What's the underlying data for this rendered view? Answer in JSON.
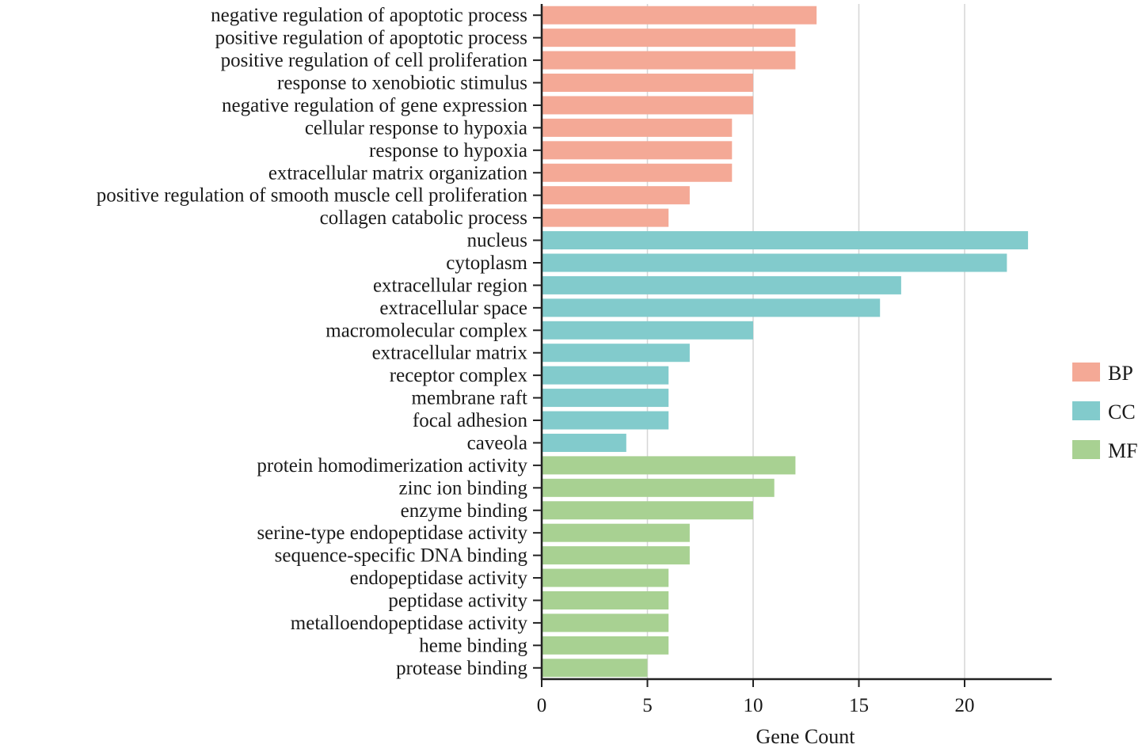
{
  "chart_data": {
    "type": "bar",
    "orientation": "horizontal",
    "xlabel": "Gene Count",
    "ylabel": "",
    "title": "",
    "xlim": [
      0,
      24
    ],
    "x_ticks": [
      0,
      5,
      10,
      15,
      20
    ],
    "grid": "vertical",
    "legend_position": "right",
    "categories": [
      "negative regulation of apoptotic process",
      "positive regulation of apoptotic process",
      "positive regulation of cell proliferation",
      "response to xenobiotic stimulus",
      "negative regulation of gene expression",
      "cellular response to hypoxia",
      "response to hypoxia",
      "extracellular matrix organization",
      "positive regulation of smooth muscle cell proliferation",
      "collagen catabolic process",
      "nucleus",
      "cytoplasm",
      "extracellular region",
      "extracellular space",
      "macromolecular complex",
      "extracellular matrix",
      "receptor complex",
      "membrane raft",
      "focal adhesion",
      "caveola",
      "protein homodimerization activity",
      "zinc ion binding",
      "enzyme binding",
      "serine-type endopeptidase activity",
      "sequence-specific DNA binding",
      "endopeptidase activity",
      "peptidase activity",
      "metalloendopeptidase activity",
      "heme binding",
      "protease binding"
    ],
    "values": [
      13,
      12,
      12,
      10,
      10,
      9,
      9,
      9,
      7,
      6,
      23,
      22,
      17,
      16,
      10,
      7,
      6,
      6,
      6,
      4,
      12,
      11,
      10,
      7,
      7,
      6,
      6,
      6,
      6,
      5
    ],
    "groups": [
      "BP",
      "BP",
      "BP",
      "BP",
      "BP",
      "BP",
      "BP",
      "BP",
      "BP",
      "BP",
      "CC",
      "CC",
      "CC",
      "CC",
      "CC",
      "CC",
      "CC",
      "CC",
      "CC",
      "CC",
      "MF",
      "MF",
      "MF",
      "MF",
      "MF",
      "MF",
      "MF",
      "MF",
      "MF",
      "MF"
    ],
    "legend": [
      {
        "name": "BP",
        "color": "#f4a996"
      },
      {
        "name": "CC",
        "color": "#82cbcc"
      },
      {
        "name": "MF",
        "color": "#a8d192"
      }
    ]
  }
}
